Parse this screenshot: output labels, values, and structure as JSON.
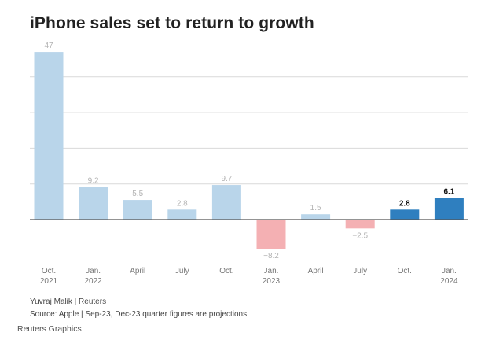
{
  "title": "iPhone sales set to return to growth",
  "byline": "Yuvraj Malik | Reuters",
  "source": "Source: Apple | Sep-23, Dec-23 quarter figures are projections",
  "credit": "Reuters Graphics",
  "colors": {
    "positive_past": "#b9d5ea",
    "negative_past": "#f4b0b3",
    "projection": "#2f7fbf",
    "grid": "#d9d9d9",
    "axis": "#555555"
  },
  "chart_data": {
    "type": "bar",
    "categories": [
      [
        "Oct.",
        "2021"
      ],
      [
        "Jan.",
        "2022"
      ],
      [
        "April",
        ""
      ],
      [
        "July",
        ""
      ],
      [
        "Oct.",
        ""
      ],
      [
        "Jan.",
        "2023"
      ],
      [
        "April",
        ""
      ],
      [
        "July",
        ""
      ],
      [
        "Oct.",
        ""
      ],
      [
        "Jan.",
        "2024"
      ]
    ],
    "values": [
      47,
      9.2,
      5.5,
      2.8,
      9.7,
      -8.2,
      1.5,
      -2.5,
      2.8,
      6.1
    ],
    "value_labels": [
      "47",
      "9.2",
      "5.5",
      "2.8",
      "9.7",
      "−8.2",
      "1.5",
      "−2.5",
      "2.8",
      "6.1"
    ],
    "projected": [
      false,
      false,
      false,
      false,
      false,
      false,
      false,
      false,
      true,
      true
    ],
    "ylim": [
      -10,
      50
    ],
    "grid": true,
    "gridlines": [
      10,
      20,
      30,
      40
    ]
  }
}
